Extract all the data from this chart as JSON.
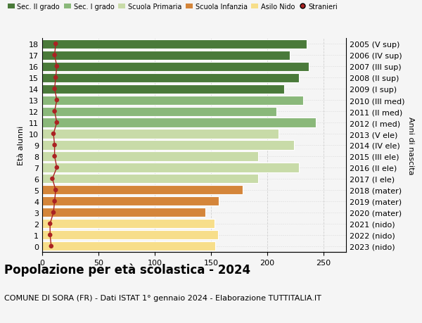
{
  "ages": [
    0,
    1,
    2,
    3,
    4,
    5,
    6,
    7,
    8,
    9,
    10,
    11,
    12,
    13,
    14,
    15,
    16,
    17,
    18
  ],
  "values": [
    154,
    156,
    153,
    145,
    157,
    178,
    192,
    228,
    192,
    224,
    210,
    243,
    208,
    232,
    215,
    228,
    237,
    220,
    235
  ],
  "bar_colors_by_age": {
    "0": "#f7de8a",
    "1": "#f7de8a",
    "2": "#f7de8a",
    "3": "#d4853a",
    "4": "#d4853a",
    "5": "#d4853a",
    "6": "#c8dba8",
    "7": "#c8dba8",
    "8": "#c8dba8",
    "9": "#c8dba8",
    "10": "#c8dba8",
    "11": "#8ab87a",
    "12": "#8ab87a",
    "13": "#8ab87a",
    "14": "#4a7a3a",
    "15": "#4a7a3a",
    "16": "#4a7a3a",
    "17": "#4a7a3a",
    "18": "#4a7a3a"
  },
  "right_labels_by_age": {
    "18": "2005 (V sup)",
    "17": "2006 (IV sup)",
    "16": "2007 (III sup)",
    "15": "2008 (II sup)",
    "14": "2009 (I sup)",
    "13": "2010 (III med)",
    "12": "2011 (II med)",
    "11": "2012 (I med)",
    "10": "2013 (V ele)",
    "9": "2014 (IV ele)",
    "8": "2015 (III ele)",
    "7": "2016 (II ele)",
    "6": "2017 (I ele)",
    "5": "2018 (mater)",
    "4": "2019 (mater)",
    "3": "2020 (mater)",
    "2": "2021 (nido)",
    "1": "2022 (nido)",
    "0": "2023 (nido)"
  },
  "ylabel": "Età alunni",
  "right_ylabel": "Anni di nascita",
  "xlim": [
    0,
    270
  ],
  "title": "Popolazione per età scolastica - 2024",
  "subtitle": "COMUNE DI SORA (FR) - Dati ISTAT 1° gennaio 2024 - Elaborazione TUTTITALIA.IT",
  "legend_labels": [
    "Sec. II grado",
    "Sec. I grado",
    "Scuola Primaria",
    "Scuola Infanzia",
    "Asilo Nido",
    "Stranieri"
  ],
  "legend_colors": [
    "#4a7a3a",
    "#8ab87a",
    "#c8dba8",
    "#d4853a",
    "#f7de8a",
    "#aa2222"
  ],
  "stranieri_color": "#aa2222",
  "stranieri_x_values": [
    8,
    7,
    7,
    10,
    11,
    12,
    9,
    13,
    11,
    11,
    10,
    13,
    11,
    13,
    11,
    12,
    13,
    11,
    12
  ],
  "background_color": "#f5f5f5",
  "title_fontsize": 12,
  "subtitle_fontsize": 8,
  "axis_fontsize": 8,
  "ylabel_fontsize": 8,
  "grid_color": "#cccccc"
}
